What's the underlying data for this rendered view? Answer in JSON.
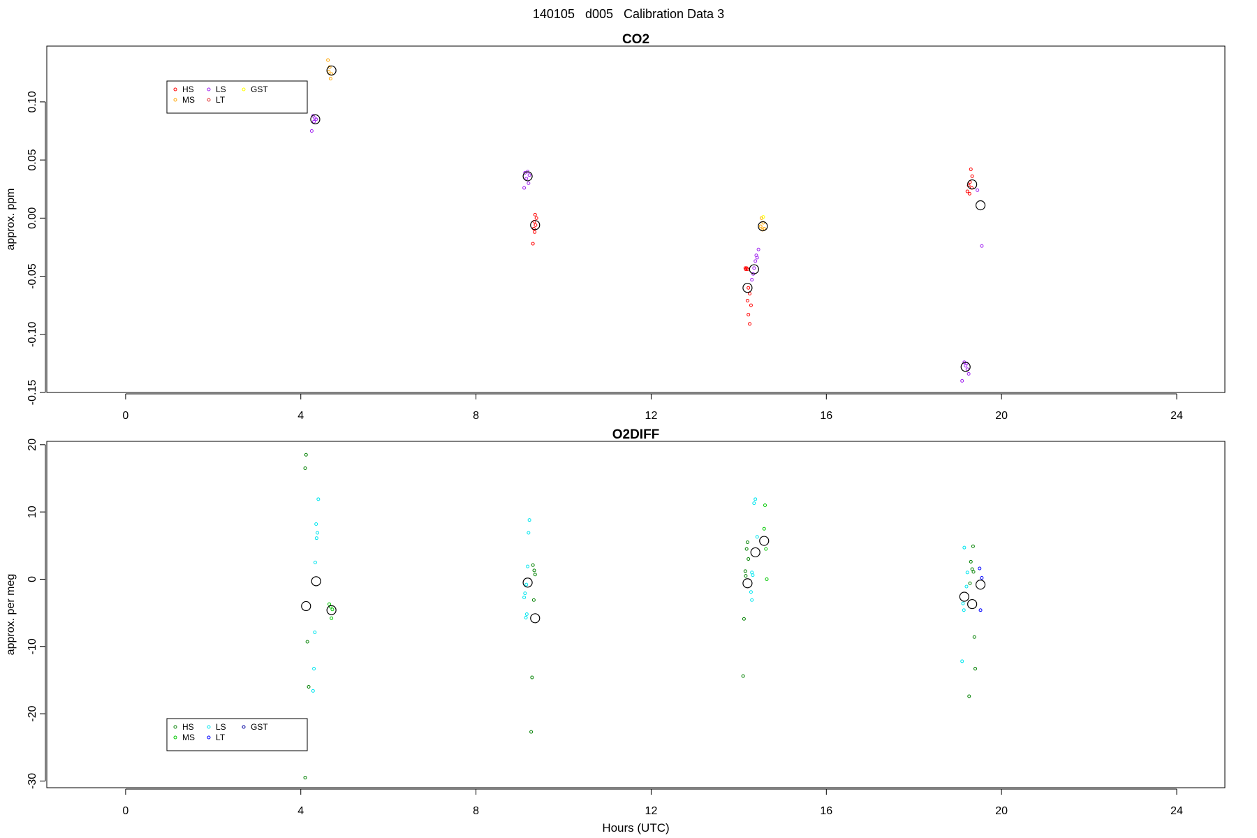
{
  "page": {
    "title": "140105   d005   Calibration Data 3"
  },
  "chart_data": [
    {
      "type": "scatter",
      "title": "CO2",
      "xlabel": "",
      "ylabel": "approx. ppm",
      "xlim": [
        -1.8,
        25.1
      ],
      "ylim": [
        -0.15,
        0.148
      ],
      "xticks": [
        0,
        4,
        8,
        12,
        16,
        20,
        24
      ],
      "yticks": [
        -0.15,
        -0.1,
        -0.05,
        0.0,
        0.05,
        0.1
      ],
      "ytick_labels": [
        "-0.15",
        "-0.10",
        "-0.05",
        "0.00",
        "0.05",
        "0.10"
      ],
      "grid": false,
      "legend": {
        "placement": "top-left",
        "columns": 3,
        "entries": [
          {
            "name": "HS",
            "color": "#ff0000"
          },
          {
            "name": "MS",
            "color": "#ffa500"
          },
          {
            "name": "LS",
            "color": "#a020f0"
          },
          {
            "name": "LT",
            "color": "#e03030"
          },
          {
            "name": "GST",
            "color": "#ffff00"
          }
        ]
      },
      "series": [
        {
          "name": "HS",
          "color": "#ff0000",
          "points": [
            [
              9.35,
              0.003
            ],
            [
              9.38,
              0.0
            ],
            [
              9.33,
              -0.003
            ],
            [
              9.36,
              -0.006
            ],
            [
              9.32,
              -0.009
            ],
            [
              9.34,
              -0.012
            ],
            [
              9.3,
              -0.022
            ],
            [
              14.15,
              -0.043
            ],
            [
              14.18,
              -0.043
            ],
            [
              14.2,
              -0.044
            ],
            [
              14.16,
              -0.044
            ],
            [
              14.22,
              -0.06
            ],
            [
              14.25,
              -0.065
            ],
            [
              14.2,
              -0.071
            ],
            [
              14.28,
              -0.075
            ],
            [
              14.22,
              -0.083
            ],
            [
              14.25,
              -0.091
            ],
            [
              19.3,
              0.042
            ],
            [
              19.33,
              0.036
            ],
            [
              19.28,
              0.031
            ],
            [
              19.25,
              0.028
            ],
            [
              19.32,
              0.026
            ],
            [
              19.22,
              0.023
            ],
            [
              19.27,
              0.021
            ]
          ]
        },
        {
          "name": "MS",
          "color": "#ffa500",
          "points": [
            [
              4.62,
              0.136
            ],
            [
              4.66,
              0.13
            ],
            [
              4.7,
              0.124
            ],
            [
              4.68,
              0.12
            ],
            [
              4.64,
              0.126
            ],
            [
              14.52,
              0.0
            ],
            [
              14.56,
              -0.004
            ],
            [
              14.5,
              -0.007
            ],
            [
              14.58,
              -0.009
            ],
            [
              14.54,
              -0.01
            ]
          ]
        },
        {
          "name": "LS",
          "color": "#a020f0",
          "points": [
            [
              4.28,
              0.088
            ],
            [
              4.32,
              0.086
            ],
            [
              4.35,
              0.085
            ],
            [
              4.3,
              0.083
            ],
            [
              4.25,
              0.075
            ],
            [
              9.12,
              0.039
            ],
            [
              9.18,
              0.04
            ],
            [
              9.22,
              0.037
            ],
            [
              9.15,
              0.034
            ],
            [
              9.2,
              0.03
            ],
            [
              9.1,
              0.026
            ],
            [
              14.45,
              -0.027
            ],
            [
              14.4,
              -0.032
            ],
            [
              14.42,
              -0.034
            ],
            [
              14.38,
              -0.037
            ],
            [
              14.35,
              -0.043
            ],
            [
              14.33,
              -0.048
            ],
            [
              14.3,
              -0.053
            ],
            [
              19.45,
              0.024
            ],
            [
              19.55,
              -0.024
            ],
            [
              19.15,
              -0.124
            ],
            [
              19.2,
              -0.125
            ],
            [
              19.18,
              -0.127
            ],
            [
              19.22,
              -0.13
            ],
            [
              19.25,
              -0.134
            ],
            [
              19.1,
              -0.14
            ]
          ]
        },
        {
          "name": "LT",
          "color": "#e03030",
          "points": []
        },
        {
          "name": "GST",
          "color": "#ffff00",
          "points": [
            [
              14.56,
              0.001
            ]
          ]
        },
        {
          "name": "mean",
          "color": "#000000",
          "large": true,
          "points": [
            [
              4.7,
              0.127
            ],
            [
              4.33,
              0.085
            ],
            [
              9.18,
              0.036
            ],
            [
              9.35,
              -0.006
            ],
            [
              14.2,
              -0.06
            ],
            [
              14.35,
              -0.044
            ],
            [
              14.55,
              -0.007
            ],
            [
              19.33,
              0.029
            ],
            [
              19.52,
              0.011
            ],
            [
              19.18,
              -0.128
            ]
          ]
        }
      ]
    },
    {
      "type": "scatter",
      "title": "O2DIFF",
      "xlabel": "Hours (UTC)",
      "ylabel": "approx. per meg",
      "xlim": [
        -1.8,
        25.1
      ],
      "ylim": [
        -31,
        20.5
      ],
      "xticks": [
        0,
        4,
        8,
        12,
        16,
        20,
        24
      ],
      "yticks": [
        -30,
        -20,
        -10,
        0,
        10,
        20
      ],
      "ytick_labels": [
        "-30",
        "-20",
        "-10",
        "0",
        "10",
        "20"
      ],
      "grid": false,
      "legend": {
        "placement": "bottom-left",
        "columns": 3,
        "entries": [
          {
            "name": "HS",
            "color": "#008000"
          },
          {
            "name": "MS",
            "color": "#00c800"
          },
          {
            "name": "LS",
            "color": "#00e5ee"
          },
          {
            "name": "LT",
            "color": "#0000ff"
          },
          {
            "name": "GST",
            "color": "#0000a0"
          }
        ]
      },
      "series": [
        {
          "name": "HS",
          "color": "#008000",
          "points": [
            [
              4.12,
              18.5
            ],
            [
              4.1,
              16.5
            ],
            [
              4.15,
              -9.3
            ],
            [
              4.18,
              -16.0
            ],
            [
              4.1,
              -29.5
            ],
            [
              9.3,
              2.1
            ],
            [
              9.33,
              1.3
            ],
            [
              9.35,
              0.7
            ],
            [
              9.32,
              -3.1
            ],
            [
              9.28,
              -14.6
            ],
            [
              9.26,
              -22.7
            ],
            [
              14.2,
              5.5
            ],
            [
              14.18,
              4.5
            ],
            [
              14.22,
              3.0
            ],
            [
              14.15,
              1.2
            ],
            [
              14.16,
              0.5
            ],
            [
              14.12,
              -5.9
            ],
            [
              14.1,
              -14.4
            ],
            [
              19.35,
              4.9
            ],
            [
              19.3,
              2.6
            ],
            [
              19.33,
              1.5
            ],
            [
              19.36,
              1.1
            ],
            [
              19.28,
              -0.6
            ],
            [
              19.38,
              -8.6
            ],
            [
              19.4,
              -13.3
            ],
            [
              19.26,
              -17.4
            ]
          ]
        },
        {
          "name": "MS",
          "color": "#00c800",
          "points": [
            [
              4.65,
              -3.7
            ],
            [
              4.68,
              -4.1
            ],
            [
              4.72,
              -4.5
            ],
            [
              4.7,
              -5.8
            ],
            [
              14.6,
              11.0
            ],
            [
              14.58,
              7.5
            ],
            [
              14.62,
              4.5
            ],
            [
              14.64,
              0.0
            ]
          ]
        },
        {
          "name": "LS",
          "color": "#00e5ee",
          "points": [
            [
              4.4,
              11.9
            ],
            [
              4.35,
              8.2
            ],
            [
              4.38,
              6.9
            ],
            [
              4.36,
              6.1
            ],
            [
              4.33,
              2.5
            ],
            [
              4.32,
              -7.9
            ],
            [
              4.3,
              -13.3
            ],
            [
              4.28,
              -16.6
            ],
            [
              9.22,
              8.8
            ],
            [
              9.2,
              6.9
            ],
            [
              9.18,
              1.9
            ],
            [
              9.15,
              -0.8
            ],
            [
              9.12,
              -2.1
            ],
            [
              9.1,
              -2.7
            ],
            [
              9.16,
              -5.2
            ],
            [
              9.14,
              -5.7
            ],
            [
              14.38,
              11.9
            ],
            [
              14.35,
              11.3
            ],
            [
              14.42,
              6.3
            ],
            [
              14.3,
              1.0
            ],
            [
              14.32,
              0.6
            ],
            [
              14.28,
              -1.9
            ],
            [
              14.3,
              -3.1
            ],
            [
              19.15,
              4.7
            ],
            [
              19.22,
              1.0
            ],
            [
              19.2,
              -1.1
            ],
            [
              19.12,
              -3.6
            ],
            [
              19.14,
              -4.6
            ],
            [
              19.1,
              -12.2
            ]
          ]
        },
        {
          "name": "LT",
          "color": "#0000ff",
          "points": [
            [
              19.5,
              1.6
            ],
            [
              19.55,
              0.2
            ],
            [
              19.52,
              -4.6
            ]
          ]
        },
        {
          "name": "GST",
          "color": "#0000a0",
          "points": []
        },
        {
          "name": "mean",
          "color": "#000000",
          "large": true,
          "points": [
            [
              4.12,
              -4.0
            ],
            [
              4.35,
              -0.3
            ],
            [
              4.7,
              -4.6
            ],
            [
              9.18,
              -0.5
            ],
            [
              9.35,
              -5.8
            ],
            [
              14.2,
              -0.6
            ],
            [
              14.38,
              4.0
            ],
            [
              14.58,
              5.7
            ],
            [
              19.15,
              -2.6
            ],
            [
              19.33,
              -3.7
            ],
            [
              19.52,
              -0.8
            ]
          ]
        }
      ]
    }
  ]
}
